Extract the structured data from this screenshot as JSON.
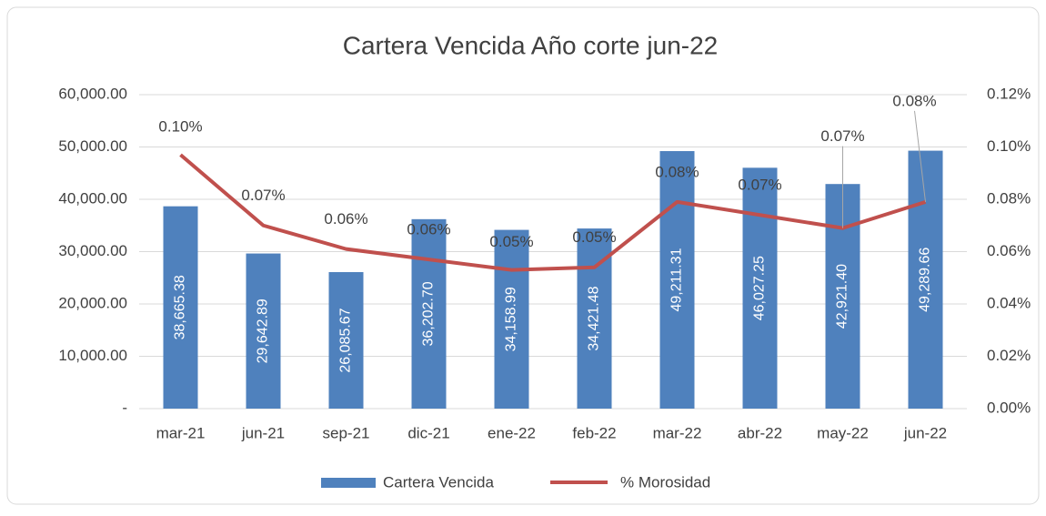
{
  "chart_data": {
    "type": "bar",
    "title": "Cartera Vencida Año corte jun-22",
    "categories": [
      "mar-21",
      "jun-21",
      "sep-21",
      "dic-21",
      "ene-22",
      "feb-22",
      "mar-22",
      "abr-22",
      "may-22",
      "jun-22"
    ],
    "series": [
      {
        "name": "Cartera Vencida",
        "type": "bar",
        "color": "#4f81bd",
        "values": [
          38665.38,
          29642.89,
          26085.67,
          36202.7,
          34158.99,
          34421.48,
          49211.31,
          46027.25,
          42921.4,
          49289.66
        ],
        "value_labels": [
          "38,665.38",
          "29,642.89",
          "26,085.67",
          "36,202.70",
          "34,158.99",
          "34,421.48",
          "49,211.31",
          "46,027.25",
          "42,921.40",
          "49,289.66"
        ]
      },
      {
        "name": "% Morosidad",
        "type": "line",
        "color": "#c0504d",
        "axis": "y2",
        "values": [
          0.097,
          0.07,
          0.061,
          0.057,
          0.053,
          0.054,
          0.079,
          0.074,
          0.069,
          0.079
        ],
        "value_labels": [
          "0.10%",
          "0.07%",
          "0.06%",
          "0.06%",
          "0.05%",
          "0.05%",
          "0.08%",
          "0.07%",
          "0.07%",
          "0.08%"
        ]
      }
    ],
    "ylim": [
      0,
      60000
    ],
    "yticks": [
      {
        "value": 0,
        "label": "-"
      },
      {
        "value": 10000,
        "label": "10,000.00"
      },
      {
        "value": 20000,
        "label": "20,000.00"
      },
      {
        "value": 30000,
        "label": "30,000.00"
      },
      {
        "value": 40000,
        "label": "40,000.00"
      },
      {
        "value": 50000,
        "label": "50,000.00"
      },
      {
        "value": 60000,
        "label": "60,000.00"
      }
    ],
    "y2lim": [
      0,
      0.12
    ],
    "y2ticks": [
      {
        "value": 0,
        "label": "0.00%"
      },
      {
        "value": 0.02,
        "label": "0.02%"
      },
      {
        "value": 0.04,
        "label": "0.04%"
      },
      {
        "value": 0.06,
        "label": "0.06%"
      },
      {
        "value": 0.08,
        "label": "0.08%"
      },
      {
        "value": 0.1,
        "label": "0.10%"
      },
      {
        "value": 0.12,
        "label": "0.12%"
      }
    ],
    "grid": true,
    "legend": "bottom"
  }
}
